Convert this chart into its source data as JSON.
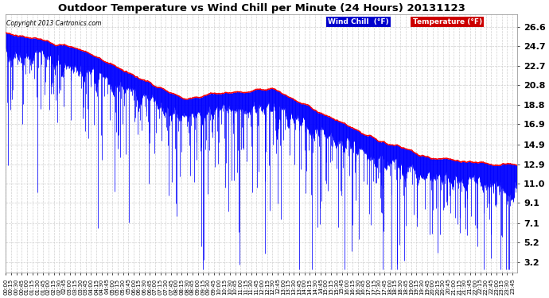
{
  "title": "Outdoor Temperature vs Wind Chill per Minute (24 Hours) 20131123",
  "copyright_text": "Copyright 2013 Cartronics.com",
  "yticks": [
    3.2,
    5.2,
    7.1,
    9.1,
    11.0,
    12.9,
    14.9,
    16.9,
    18.8,
    20.8,
    22.7,
    24.7,
    26.6
  ],
  "ymin": 2.2,
  "ymax": 27.8,
  "temp_color": "#ff0000",
  "wind_chill_color": "#0000ff",
  "background_color": "#ffffff",
  "grid_color": "#cccccc",
  "legend_wind_chill_bg": "#0000cc",
  "legend_temp_bg": "#cc0000",
  "n_minutes": 1440,
  "seed": 7,
  "figwidth": 6.9,
  "figheight": 3.75,
  "dpi": 100
}
